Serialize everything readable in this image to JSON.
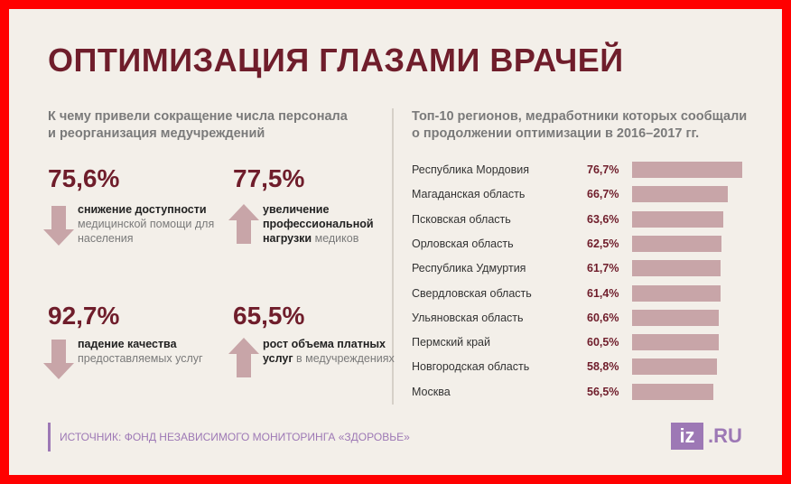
{
  "title": "ОПТИМИЗАЦИЯ ГЛАЗАМИ ВРАЧЕЙ",
  "left_subtitle": [
    "К чему привели сокращение числа персонала",
    "и реорганизация медучреждений"
  ],
  "right_subtitle": [
    "Топ-10 регионов, медработники которых сообщали",
    "о продолжении оптимизации в 2016–2017 гг."
  ],
  "stats": [
    {
      "value": "75,6%",
      "direction": "down",
      "bold": "снижение доступности",
      "rest": "медицинской помощи для населения"
    },
    {
      "value": "77,5%",
      "direction": "up",
      "bold": "увеличение профессиональной нагрузки",
      "rest": "медиков"
    },
    {
      "value": "92,7%",
      "direction": "down",
      "bold": "падение качества",
      "rest": "предоставляемых услуг"
    },
    {
      "value": "65,5%",
      "direction": "up",
      "bold": "рост объема платных услуг",
      "rest": "в медучреждениях"
    }
  ],
  "chart_data": {
    "type": "bar",
    "orientation": "horizontal",
    "categories": [
      "Республика Мордовия",
      "Магаданская область",
      "Псковская область",
      "Орловская область",
      "Республика Удмуртия",
      "Свердловская область",
      "Ульяновская область",
      "Пермский край",
      "Новгородская область",
      "Москва"
    ],
    "values": [
      76.7,
      66.7,
      63.6,
      62.5,
      61.7,
      61.4,
      60.6,
      60.5,
      58.8,
      56.5
    ],
    "labels": [
      "76,7%",
      "66,7%",
      "63,6%",
      "62,5%",
      "61,7%",
      "61,4%",
      "60,6%",
      "60,5%",
      "58,8%",
      "56,5%"
    ],
    "bar_color": "#c8a5a8"
  },
  "source": "ИСТОЧНИК: ФОНД НЕЗАВИСИМОГО МОНИТОРИНГА «ЗДОРОВЬЕ»",
  "logo": {
    "iz": "iz",
    "ru": ".RU"
  },
  "colors": {
    "frame": "#ff0000",
    "accent": "#6f1d2b",
    "arrow": "#c8a5a8",
    "brand": "#9d78b5"
  }
}
